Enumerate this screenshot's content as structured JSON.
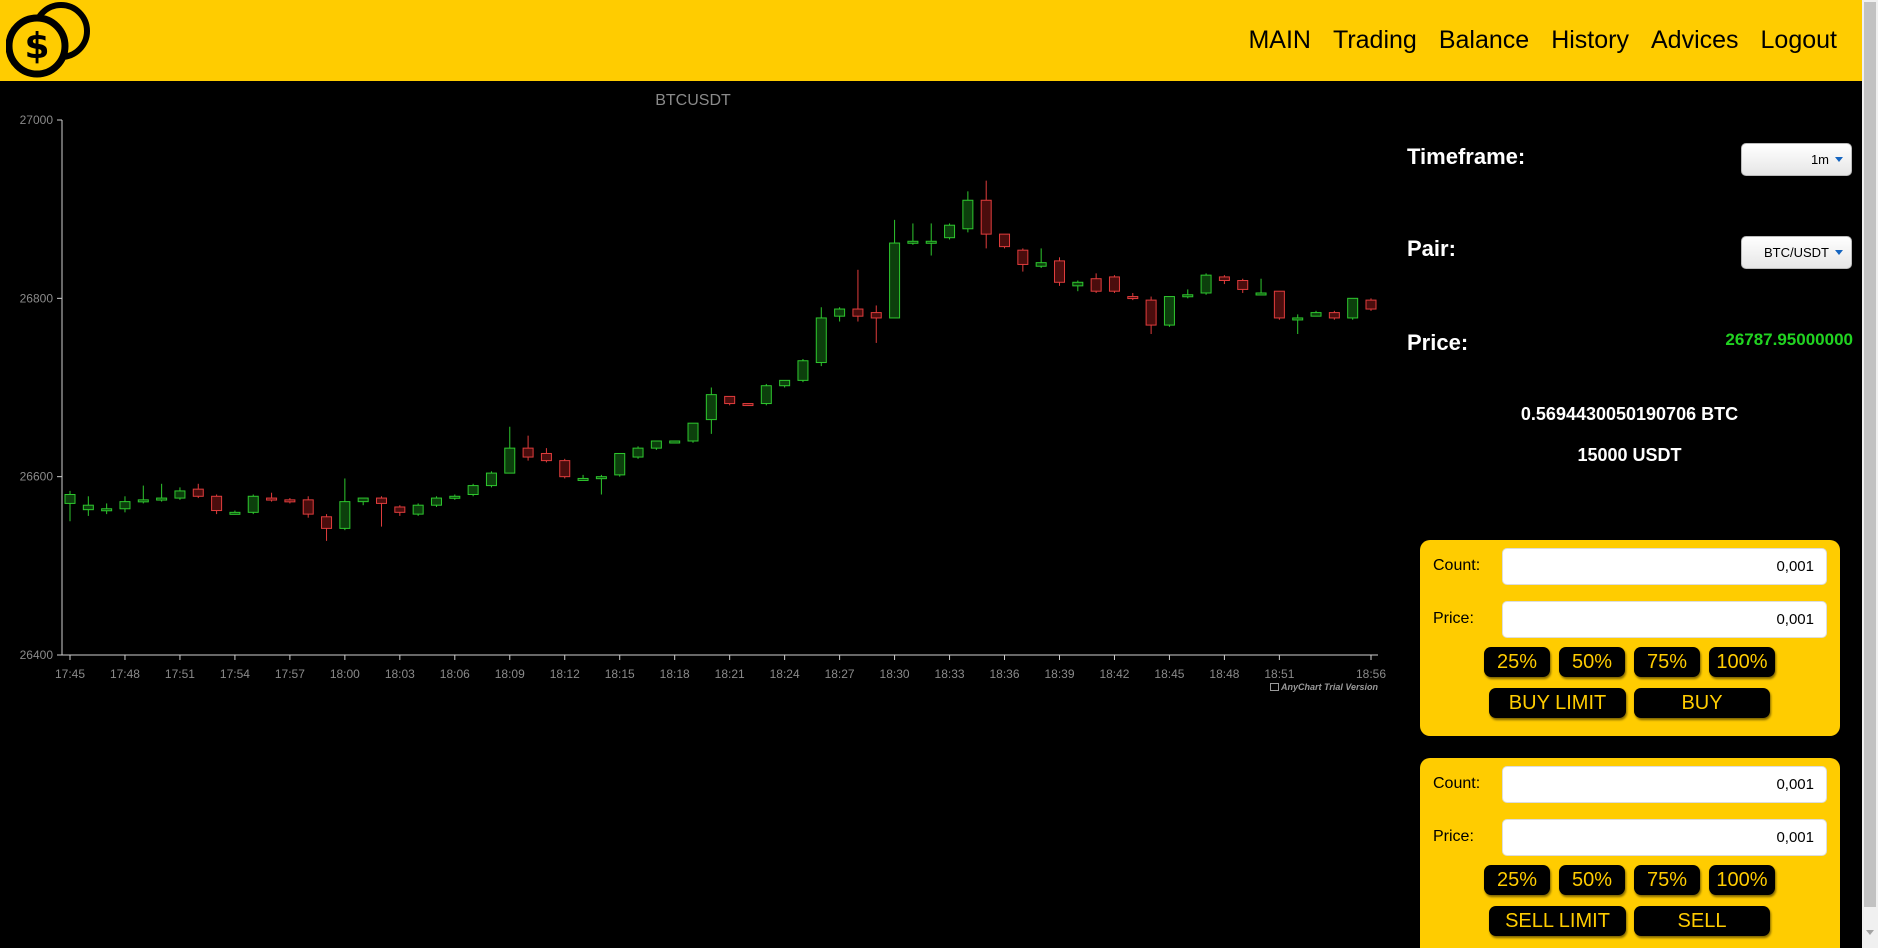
{
  "nav": {
    "items": [
      {
        "label": "MAIN"
      },
      {
        "label": "Trading"
      },
      {
        "label": "Balance"
      },
      {
        "label": "History"
      },
      {
        "label": "Advices"
      },
      {
        "label": "Logout"
      }
    ]
  },
  "panel": {
    "timeframe_label": "Timeframe:",
    "timeframe_value": "1m",
    "pair_label": "Pair:",
    "pair_value": "BTC/USDT",
    "price_label": "Price:",
    "price_value": "26787.95000000",
    "btc_balance": "0.5694430050190706 BTC",
    "usdt_balance": "15000 USDT"
  },
  "buy_form": {
    "count_label": "Count:",
    "count_value": "0,001",
    "price_label": "Price:",
    "price_value": "0,001",
    "pct": [
      "25%",
      "50%",
      "75%",
      "100%"
    ],
    "limit_label": "BUY LIMIT",
    "market_label": "BUY"
  },
  "sell_form": {
    "count_label": "Count:",
    "count_value": "0,001",
    "price_label": "Price:",
    "price_value": "0,001",
    "pct": [
      "25%",
      "50%",
      "75%",
      "100%"
    ],
    "limit_label": "SELL LIMIT",
    "market_label": "SELL"
  },
  "trial_text": "AnyChart Trial Version",
  "colors": {
    "brand": "#ffcc00",
    "up": "#2ec72e",
    "down": "#e03c3c",
    "price": "#21d321"
  },
  "chart_data": {
    "type": "candlestick",
    "title": "BTCUSDT",
    "ylim": [
      26400,
      27000
    ],
    "y_ticks": [
      26400,
      26600,
      26800,
      27000
    ],
    "x_tick_labels": [
      "17:45",
      "17:48",
      "17:51",
      "17:54",
      "17:57",
      "18:00",
      "18:03",
      "18:06",
      "18:09",
      "18:12",
      "18:15",
      "18:18",
      "18:21",
      "18:24",
      "18:27",
      "18:30",
      "18:33",
      "18:36",
      "18:39",
      "18:42",
      "18:45",
      "18:48",
      "18:51",
      "18:56"
    ],
    "candles": [
      [
        26570,
        26580,
        26552,
        26550,
        26584
      ],
      [
        26563,
        26568,
        26560,
        26556,
        26578
      ],
      [
        26562,
        26564,
        26560,
        26558,
        26570
      ],
      [
        26564,
        26572,
        26564,
        26560,
        26578
      ],
      [
        26572,
        26574,
        26572,
        26570,
        26590
      ],
      [
        26574,
        26576,
        26574,
        26572,
        26592
      ],
      [
        26576,
        26584,
        26576,
        26574,
        26588
      ],
      [
        26586,
        26578,
        26578,
        26576,
        26592
      ],
      [
        26578,
        26562,
        26562,
        26558,
        26580
      ],
      [
        26560,
        26560,
        26560,
        26558,
        26562
      ],
      [
        26560,
        26578,
        26560,
        26558,
        26580
      ],
      [
        26576,
        26574,
        26574,
        26572,
        26582
      ],
      [
        26574,
        26572,
        26572,
        26570,
        26576
      ],
      [
        26574,
        26558,
        26558,
        26554,
        26578
      ],
      [
        26555,
        26542,
        26542,
        26528,
        26558
      ],
      [
        26542,
        26572,
        26542,
        26540,
        26598
      ],
      [
        26572,
        26576,
        26572,
        26568,
        26576
      ],
      [
        26576,
        26570,
        26570,
        26544,
        26578
      ],
      [
        26566,
        26560,
        26560,
        26556,
        26568
      ],
      [
        26558,
        26568,
        26558,
        26556,
        26570
      ],
      [
        26568,
        26576,
        26568,
        26566,
        26578
      ],
      [
        26576,
        26578,
        26576,
        26574,
        26580
      ],
      [
        26580,
        26590,
        26580,
        26578,
        26592
      ],
      [
        26590,
        26604,
        26590,
        26588,
        26606
      ],
      [
        26604,
        26632,
        26604,
        26604,
        26656
      ],
      [
        26632,
        26622,
        26622,
        26618,
        26646
      ],
      [
        26626,
        26618,
        26618,
        26616,
        26632
      ],
      [
        26618,
        26600,
        26600,
        26598,
        26620
      ],
      [
        26598,
        26598,
        26598,
        26596,
        26602
      ],
      [
        26598,
        26600,
        26598,
        26580,
        26602
      ],
      [
        26602,
        26626,
        26602,
        26600,
        26626
      ],
      [
        26622,
        26632,
        26622,
        26620,
        26634
      ],
      [
        26632,
        26640,
        26632,
        26630,
        26640
      ],
      [
        26638,
        26640,
        26638,
        26638,
        26640
      ],
      [
        26640,
        26660,
        26640,
        26638,
        26660
      ],
      [
        26664,
        26692,
        26664,
        26648,
        26700
      ],
      [
        26690,
        26682,
        26682,
        26680,
        26690
      ],
      [
        26682,
        26680,
        26680,
        26680,
        26682
      ],
      [
        26682,
        26702,
        26682,
        26680,
        26704
      ],
      [
        26702,
        26708,
        26702,
        26700,
        26708
      ],
      [
        26708,
        26730,
        26708,
        26706,
        26732
      ],
      [
        26728,
        26778,
        26728,
        26724,
        26790
      ],
      [
        26780,
        26788,
        26780,
        26774,
        26790
      ],
      [
        26788,
        26780,
        26780,
        26774,
        26832
      ],
      [
        26784,
        26778,
        26778,
        26750,
        26792
      ],
      [
        26778,
        26862,
        26778,
        26778,
        26888
      ],
      [
        26862,
        26864,
        26862,
        26860,
        26884
      ],
      [
        26864,
        26864,
        26864,
        26848,
        26884
      ],
      [
        26868,
        26882,
        26868,
        26866,
        26884
      ],
      [
        26878,
        26910,
        26878,
        26874,
        26920
      ],
      [
        26910,
        26872,
        26872,
        26856,
        26932
      ],
      [
        26872,
        26858,
        26858,
        26856,
        26872
      ],
      [
        26854,
        26838,
        26838,
        26830,
        26856
      ],
      [
        26836,
        26840,
        26836,
        26834,
        26856
      ],
      [
        26842,
        26818,
        26818,
        26814,
        26846
      ],
      [
        26814,
        26818,
        26814,
        26808,
        26820
      ],
      [
        26822,
        26808,
        26808,
        26806,
        26828
      ],
      [
        26824,
        26808,
        26808,
        26806,
        26826
      ],
      [
        26802,
        26800,
        26800,
        26798,
        26806
      ],
      [
        26798,
        26770,
        26770,
        26760,
        26802
      ],
      [
        26770,
        26802,
        26770,
        26768,
        26802
      ],
      [
        26802,
        26804,
        26802,
        26800,
        26810
      ],
      [
        26806,
        26826,
        26806,
        26804,
        26828
      ],
      [
        26824,
        26820,
        26820,
        26816,
        26826
      ],
      [
        26820,
        26810,
        26810,
        26806,
        26822
      ],
      [
        26806,
        26806,
        26806,
        26804,
        26822
      ],
      [
        26808,
        26778,
        26778,
        26776,
        26808
      ],
      [
        26778,
        26778,
        26778,
        26760,
        26782
      ],
      [
        26780,
        26784,
        26780,
        26780,
        26786
      ],
      [
        26784,
        26778,
        26778,
        26776,
        26786
      ],
      [
        26778,
        26800,
        26778,
        26776,
        26800
      ],
      [
        26798,
        26788,
        26788,
        26786,
        26800
      ]
    ],
    "grid": false,
    "legend": "none"
  }
}
